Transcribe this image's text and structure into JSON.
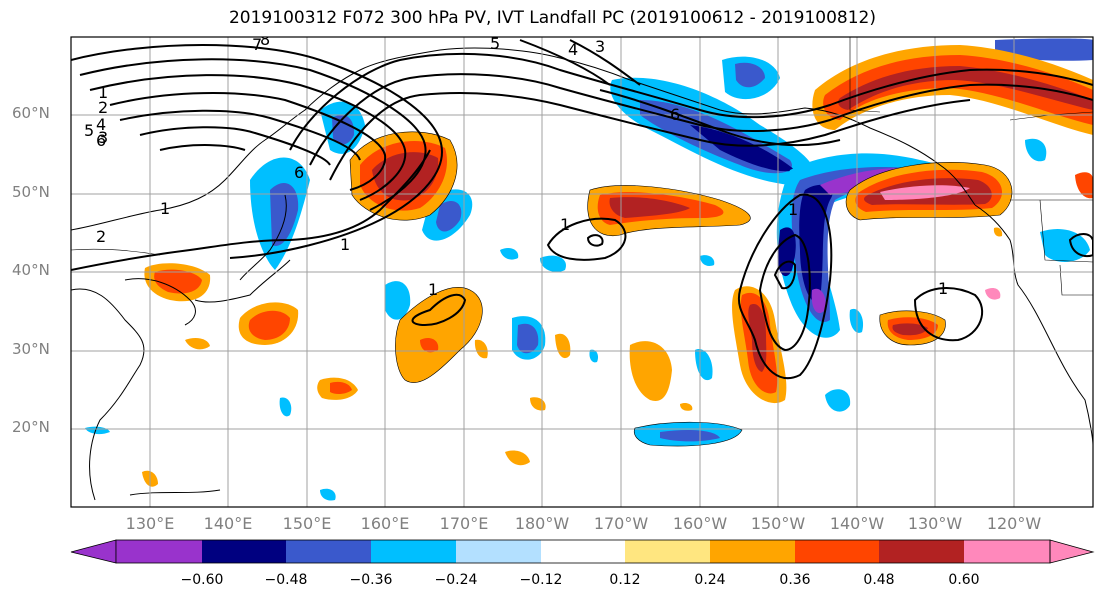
{
  "title": "2019100312 F072 300 hPa PV, IVT Landfall PC (2019100612 - 2019100812)",
  "lat_labels": [
    "60°N",
    "50°N",
    "40°N",
    "30°N",
    "20°N"
  ],
  "lon_labels": [
    "130°E",
    "140°E",
    "150°E",
    "160°E",
    "170°E",
    "180°W",
    "170°W",
    "160°W",
    "150°W",
    "140°W",
    "130°W",
    "120°W"
  ],
  "colorbar": {
    "ticks": [
      "−0.60",
      "−0.48",
      "−0.36",
      "−0.24",
      "−0.12",
      "0.12",
      "0.24",
      "0.36",
      "0.48",
      "0.60"
    ],
    "colors": [
      "#9933cc",
      "#000080",
      "#3a59cc",
      "#00bfff",
      "#b3e0ff",
      "#ffffff",
      "#ffe680",
      "#ffa500",
      "#ff4500",
      "#b22222",
      "#ff88bb"
    ]
  },
  "contour_labels": [
    "1",
    "2",
    "3",
    "4",
    "5",
    "6",
    "7",
    "8",
    "5",
    "3",
    "4",
    "6",
    "1",
    "1",
    "1",
    "6",
    "1",
    "2",
    "1",
    "1"
  ]
}
